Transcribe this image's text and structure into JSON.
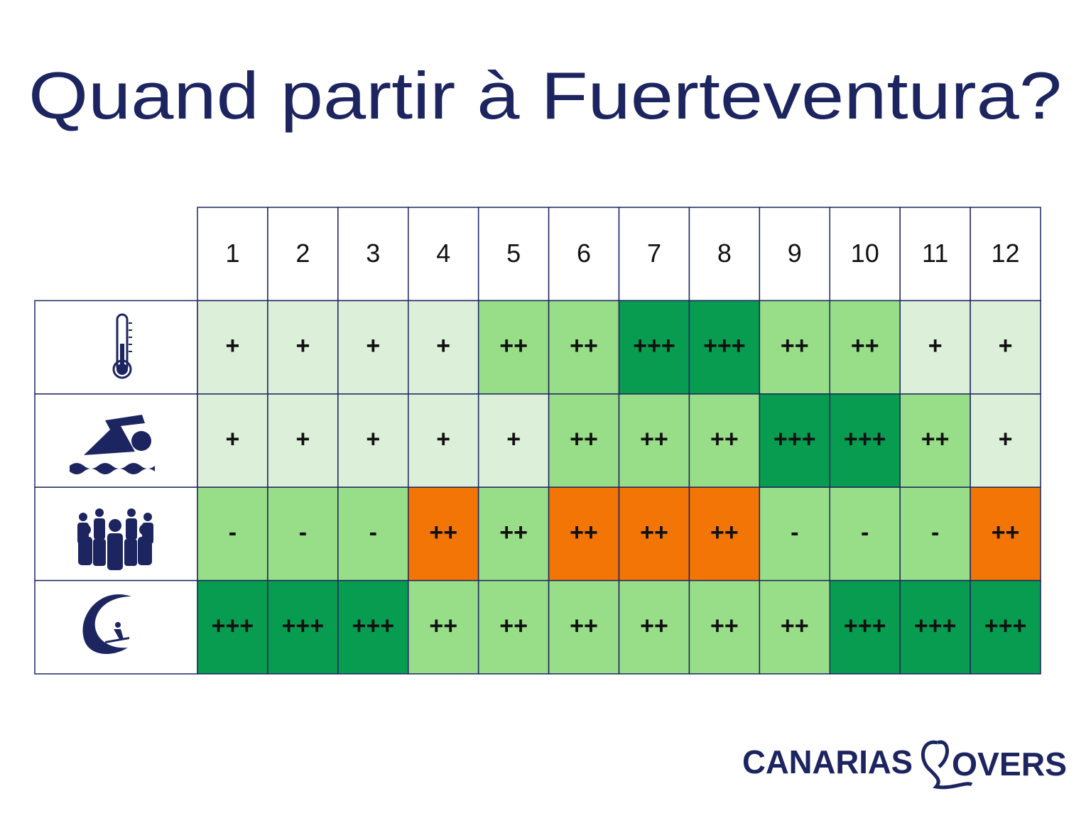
{
  "header": {
    "title": "Quand partir à Fuerteventura?"
  },
  "table": {
    "columns": [
      "1",
      "2",
      "3",
      "4",
      "5",
      "6",
      "7",
      "8",
      "9",
      "10",
      "11",
      "12"
    ],
    "rows": [
      [
        {
          "text": "+",
          "color": "#dcefd8"
        },
        {
          "text": "+",
          "color": "#dcefd8"
        },
        {
          "text": "+",
          "color": "#dcefd8"
        },
        {
          "text": "+",
          "color": "#dcefd8"
        },
        {
          "text": "++",
          "color": "#98dd88"
        },
        {
          "text": "++",
          "color": "#98dd88"
        },
        {
          "text": "+++",
          "color": "#079c50"
        },
        {
          "text": "+++",
          "color": "#079c50"
        },
        {
          "text": "++",
          "color": "#98dd88"
        },
        {
          "text": "++",
          "color": "#98dd88"
        },
        {
          "text": "+",
          "color": "#dcefd8"
        },
        {
          "text": "+",
          "color": "#dcefd8"
        }
      ],
      [
        {
          "text": "+",
          "color": "#dcefd8"
        },
        {
          "text": "+",
          "color": "#dcefd8"
        },
        {
          "text": "+",
          "color": "#dcefd8"
        },
        {
          "text": "+",
          "color": "#dcefd8"
        },
        {
          "text": "+",
          "color": "#dcefd8"
        },
        {
          "text": "++",
          "color": "#98dd88"
        },
        {
          "text": "++",
          "color": "#98dd88"
        },
        {
          "text": "++",
          "color": "#98dd88"
        },
        {
          "text": "+++",
          "color": "#079c50"
        },
        {
          "text": "+++",
          "color": "#079c50"
        },
        {
          "text": "++",
          "color": "#98dd88"
        },
        {
          "text": "+",
          "color": "#dcefd8"
        }
      ],
      [
        {
          "text": "-",
          "color": "#98dd88"
        },
        {
          "text": "-",
          "color": "#98dd88"
        },
        {
          "text": "-",
          "color": "#98dd88"
        },
        {
          "text": "++",
          "color": "#f27506"
        },
        {
          "text": "++",
          "color": "#98dd88"
        },
        {
          "text": "++",
          "color": "#f27506"
        },
        {
          "text": "++",
          "color": "#f27506"
        },
        {
          "text": "++",
          "color": "#f27506"
        },
        {
          "text": "-",
          "color": "#98dd88"
        },
        {
          "text": "-",
          "color": "#98dd88"
        },
        {
          "text": "-",
          "color": "#98dd88"
        },
        {
          "text": "++",
          "color": "#f27506"
        }
      ],
      [
        {
          "text": "+++",
          "color": "#079c50"
        },
        {
          "text": "+++",
          "color": "#079c50"
        },
        {
          "text": "+++",
          "color": "#079c50"
        },
        {
          "text": "++",
          "color": "#98dd88"
        },
        {
          "text": "++",
          "color": "#98dd88"
        },
        {
          "text": "++",
          "color": "#98dd88"
        },
        {
          "text": "++",
          "color": "#98dd88"
        },
        {
          "text": "++",
          "color": "#98dd88"
        },
        {
          "text": "++",
          "color": "#98dd88"
        },
        {
          "text": "+++",
          "color": "#079c50"
        },
        {
          "text": "+++",
          "color": "#079c50"
        },
        {
          "text": "+++",
          "color": "#079c50"
        }
      ]
    ]
  },
  "logo": {
    "part1": "CANARIAS",
    "part2": "OVERS"
  }
}
